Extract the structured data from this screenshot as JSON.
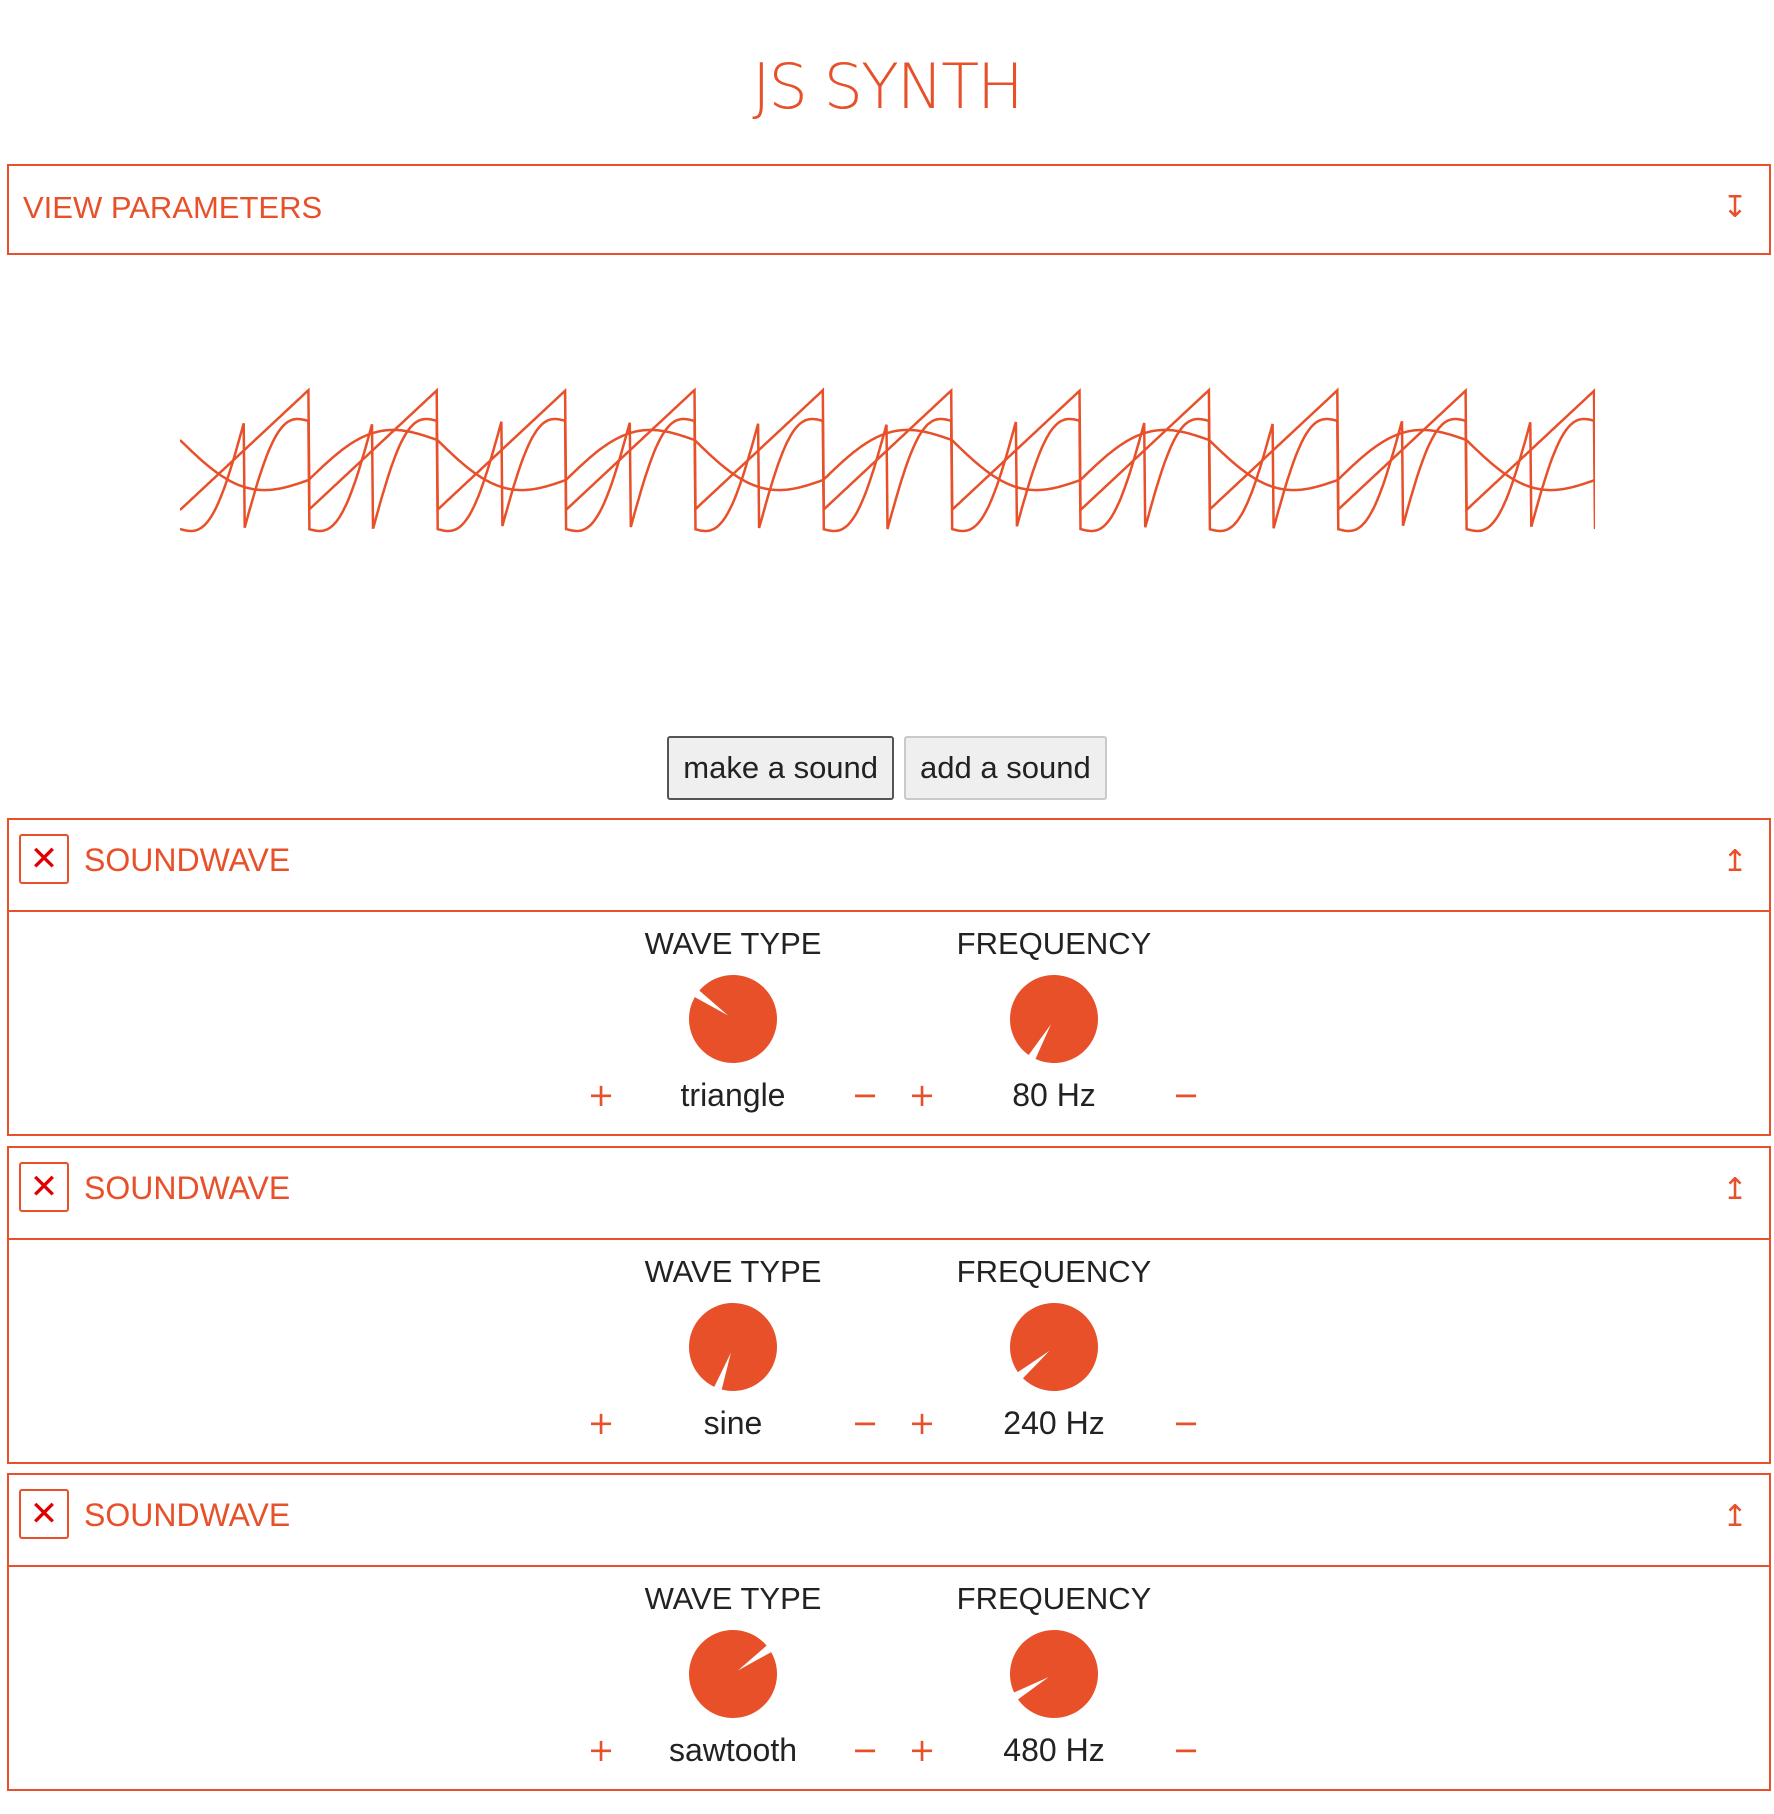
{
  "app": {
    "title": "JS SYNTH"
  },
  "view_parameters": {
    "label": "VIEW PARAMETERS",
    "toggle_icon": "expand-down-icon"
  },
  "buttons": {
    "make": "make a sound",
    "add": "add a sound"
  },
  "colors": {
    "accent": "#e8502a",
    "close": "#e00000",
    "text": "#222222"
  },
  "sounds": [
    {
      "title": "SOUNDWAVE",
      "wave_label": "WAVE TYPE",
      "wave_value": "triangle",
      "freq_label": "FREQUENCY",
      "freq_value": "80 Hz"
    },
    {
      "title": "SOUNDWAVE",
      "wave_label": "WAVE TYPE",
      "wave_value": "sine",
      "freq_label": "FREQUENCY",
      "freq_value": "240 Hz"
    },
    {
      "title": "SOUNDWAVE",
      "wave_label": "WAVE TYPE",
      "wave_value": "sawtooth",
      "freq_label": "FREQUENCY",
      "freq_value": "480 Hz"
    }
  ],
  "controls": {
    "plus": "+",
    "minus": "−",
    "close": "✕",
    "collapse": "↥",
    "expand": "↧"
  }
}
